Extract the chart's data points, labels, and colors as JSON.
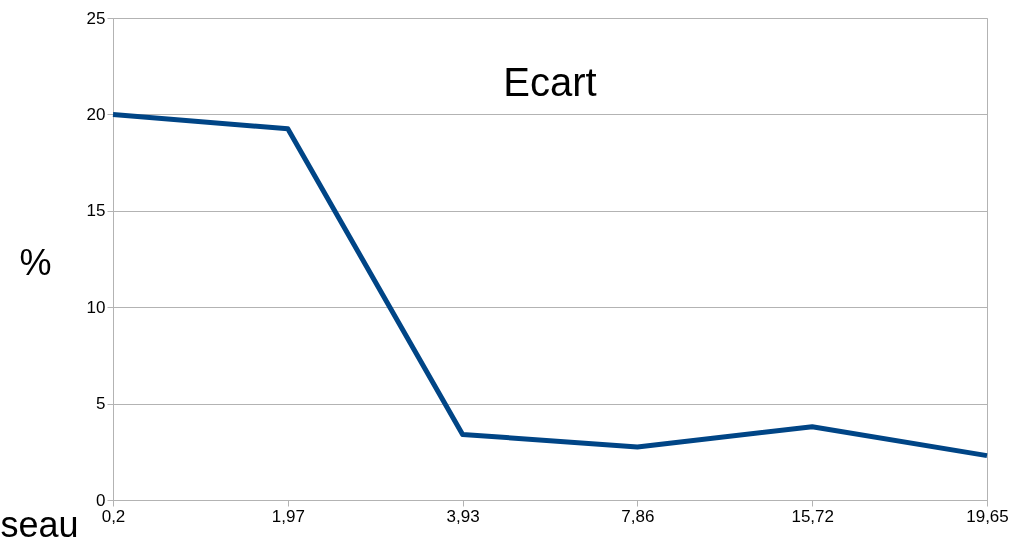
{
  "chart_data": {
    "type": "line",
    "title": "Ecart",
    "xlabel": "seau",
    "ylabel": "%",
    "categories": [
      "0,2",
      "1,97",
      "3,93",
      "7,86",
      "15,72",
      "19,65"
    ],
    "series": [
      {
        "color": "#004586",
        "values": [
          20,
          19.25,
          3.4,
          2.75,
          3.8,
          2.3
        ]
      }
    ],
    "ylim": [
      0,
      25
    ],
    "yticks": [
      0,
      5,
      10,
      15,
      20,
      25
    ],
    "grid": "y",
    "legend": false,
    "marker": "none",
    "line_style": "solid"
  }
}
